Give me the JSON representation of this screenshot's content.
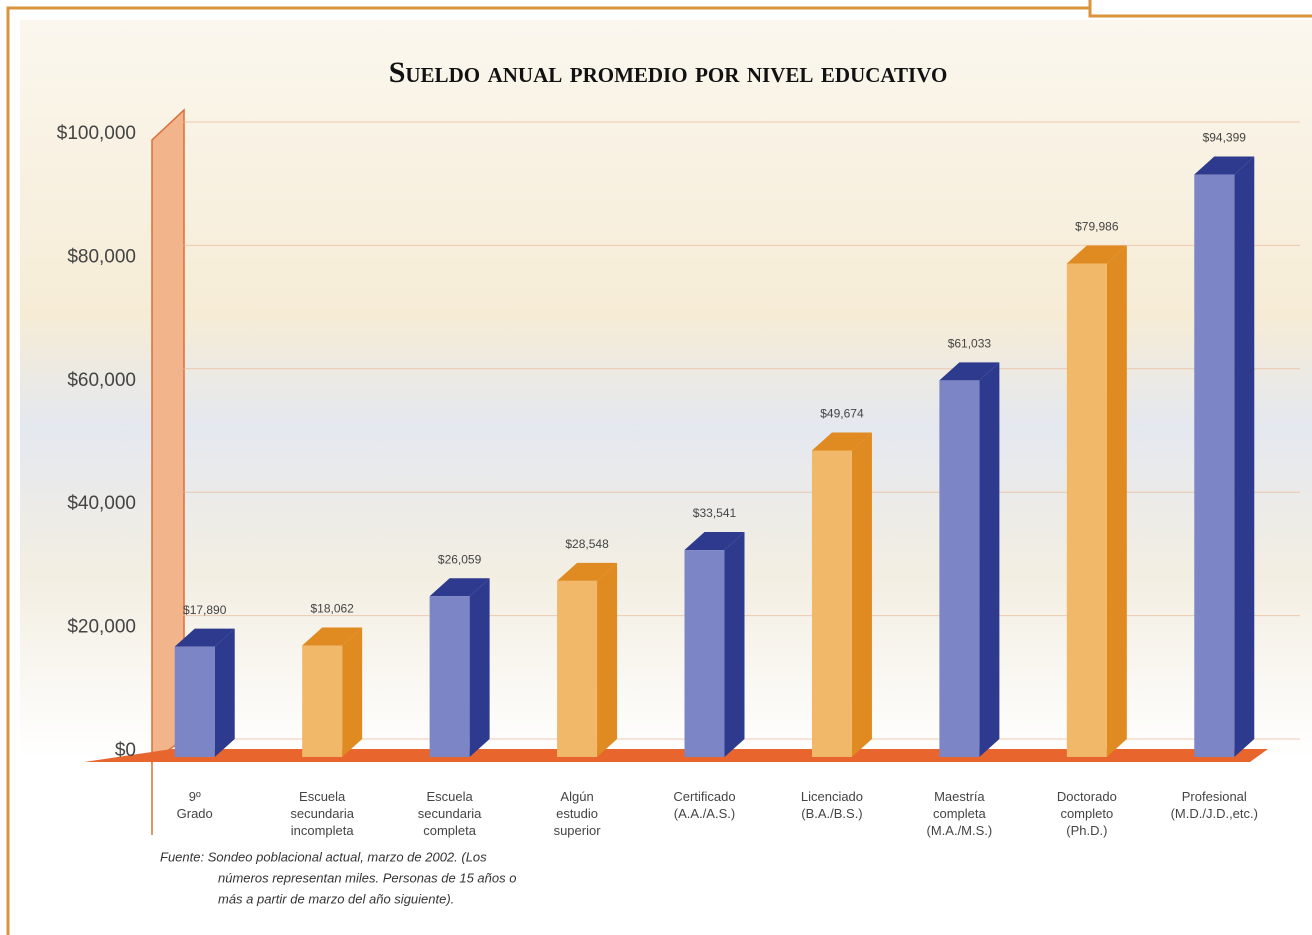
{
  "chart_data": {
    "type": "bar",
    "title": "Sueldo anual promedio por nivel educativo",
    "categories": [
      "9º\nGrado",
      "Escuela\nsecundaria\nincompleta",
      "Escuela\nsecundaria\ncompleta",
      "Algún\nestudio\nsuperior",
      "Certificado\n(A.A./A.S.)",
      "Licenciado\n(B.A./B.S.)",
      "Maestría\ncompleta\n(M.A./M.S.)",
      "Doctorado\ncompleto\n(Ph.D.)",
      "Profesional\n(M.D./J.D.,etc.)"
    ],
    "values": [
      17890,
      18062,
      26059,
      28548,
      33541,
      49674,
      61033,
      79986,
      94399
    ],
    "value_labels": [
      "$17,890",
      "$18,062",
      "$26,059",
      "$28,548",
      "$33,541",
      "$49,674",
      "$61,033",
      "$79,986",
      "$94,399"
    ],
    "colors": [
      "#7c86c6",
      "#f0b868",
      "#7c86c6",
      "#f0b868",
      "#7c86c6",
      "#f0b868",
      "#7c86c6",
      "#f0b868",
      "#7c86c6"
    ],
    "side_colors": [
      "#2e3a8e",
      "#e08a22",
      "#2e3a8e",
      "#e08a22",
      "#2e3a8e",
      "#e08a22",
      "#2e3a8e",
      "#e08a22",
      "#2e3a8e"
    ],
    "ylim": [
      0,
      100000
    ],
    "yticks": [
      {
        "value": 0,
        "label": "$0"
      },
      {
        "value": 20000,
        "label": "$20,000"
      },
      {
        "value": 40000,
        "label": "$40,000"
      },
      {
        "value": 60000,
        "label": "$60,000"
      },
      {
        "value": 80000,
        "label": "$80,000"
      },
      {
        "value": 100000,
        "label": "$100,000"
      }
    ],
    "grid": true,
    "source": [
      "Fuente:  Sondeo poblacional actual, marzo de 2002. (Los",
      "números representan miles. Personas de 15 años o",
      "más a partir de marzo del año siguiente)."
    ]
  }
}
